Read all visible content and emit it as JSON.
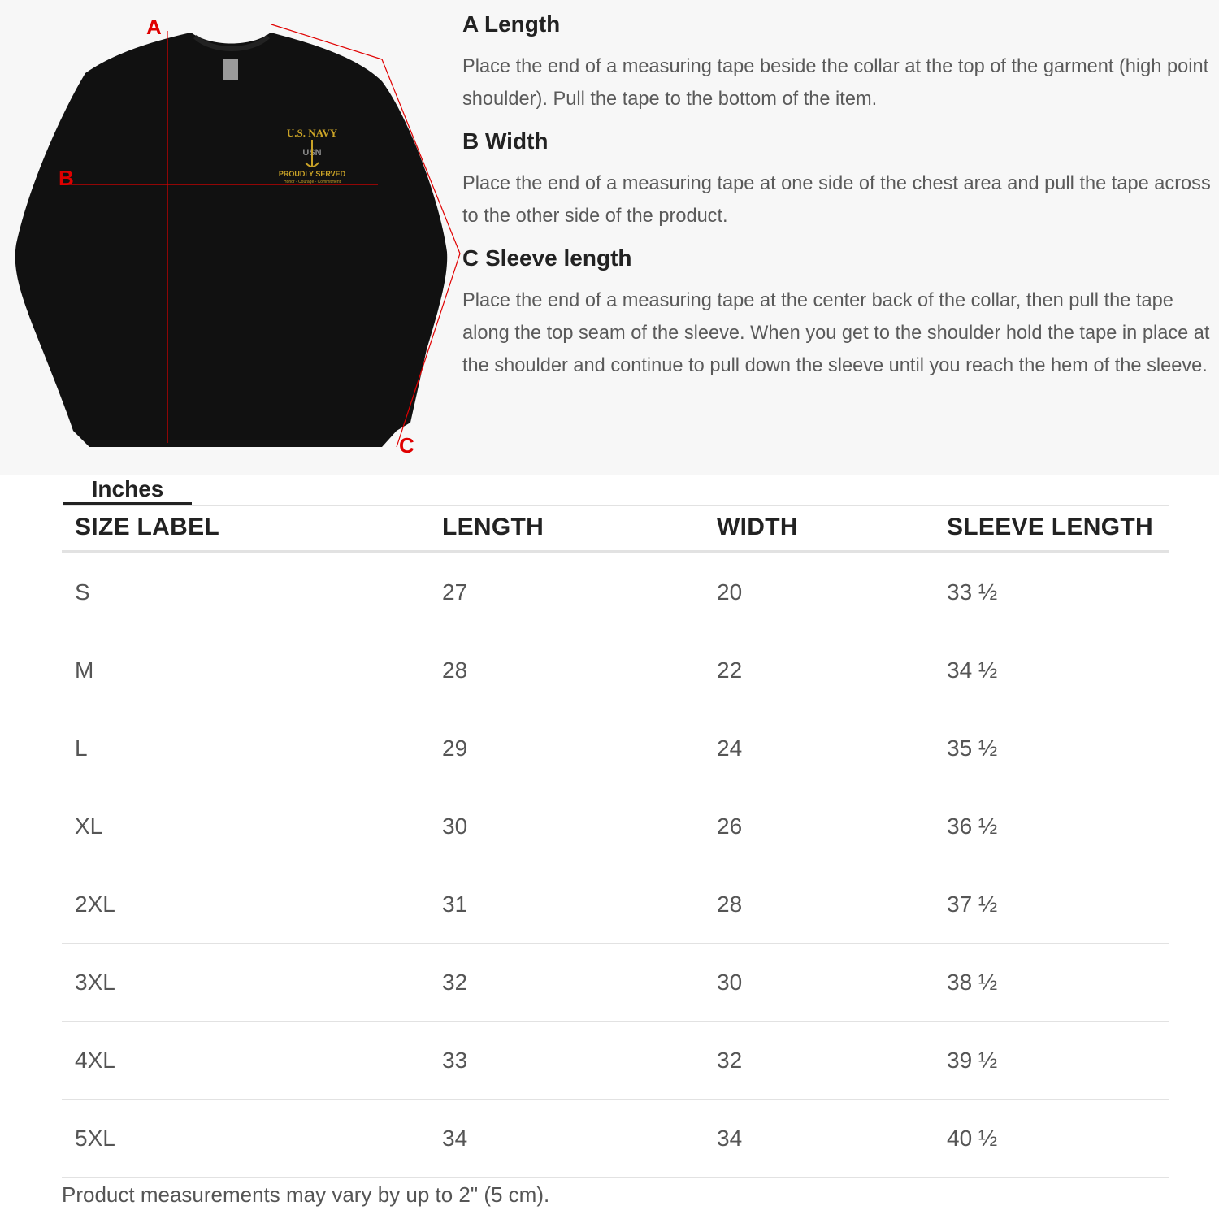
{
  "guide": {
    "sections": [
      {
        "title": "A Length",
        "text": "Place the end of a measuring tape beside the collar at the top of the garment (high point shoulder). Pull the tape to the bottom of the item."
      },
      {
        "title": "B Width",
        "text": "Place the end of a measuring tape at one side of the chest area and pull the tape across to the other side of the product."
      },
      {
        "title": "C Sleeve length",
        "text": "Place the end of a measuring tape at the center back of the collar, then pull the tape along the top seam of the sleeve. When you get to the shoulder hold the tape in place at the shoulder and continue to pull down the sleeve until you reach the hem of the sleeve."
      }
    ]
  },
  "image": {
    "markers": {
      "a": "A",
      "b": "B",
      "c": "C"
    },
    "logo": {
      "line1": "U.S. NAVY",
      "line2": "USN",
      "line3": "PROUDLY SERVED",
      "line4": "Honor - Courage - Commitment"
    },
    "garment_color": "#111111",
    "marker_color": "#e00000",
    "logo_color": "#c9a227"
  },
  "unit_tab": "Inches",
  "table": {
    "headers": [
      "SIZE LABEL",
      "LENGTH",
      "WIDTH",
      "SLEEVE LENGTH"
    ],
    "rows": [
      [
        "S",
        "27",
        "20",
        "33 ½"
      ],
      [
        "M",
        "28",
        "22",
        "34 ½"
      ],
      [
        "L",
        "29",
        "24",
        "35 ½"
      ],
      [
        "XL",
        "30",
        "26",
        "36 ½"
      ],
      [
        "2XL",
        "31",
        "28",
        "37 ½"
      ],
      [
        "3XL",
        "32",
        "30",
        "38 ½"
      ],
      [
        "4XL",
        "33",
        "32",
        "39 ½"
      ],
      [
        "5XL",
        "34",
        "34",
        "40 ½"
      ]
    ]
  },
  "note": "Product measurements may vary by up to 2\" (5 cm)."
}
